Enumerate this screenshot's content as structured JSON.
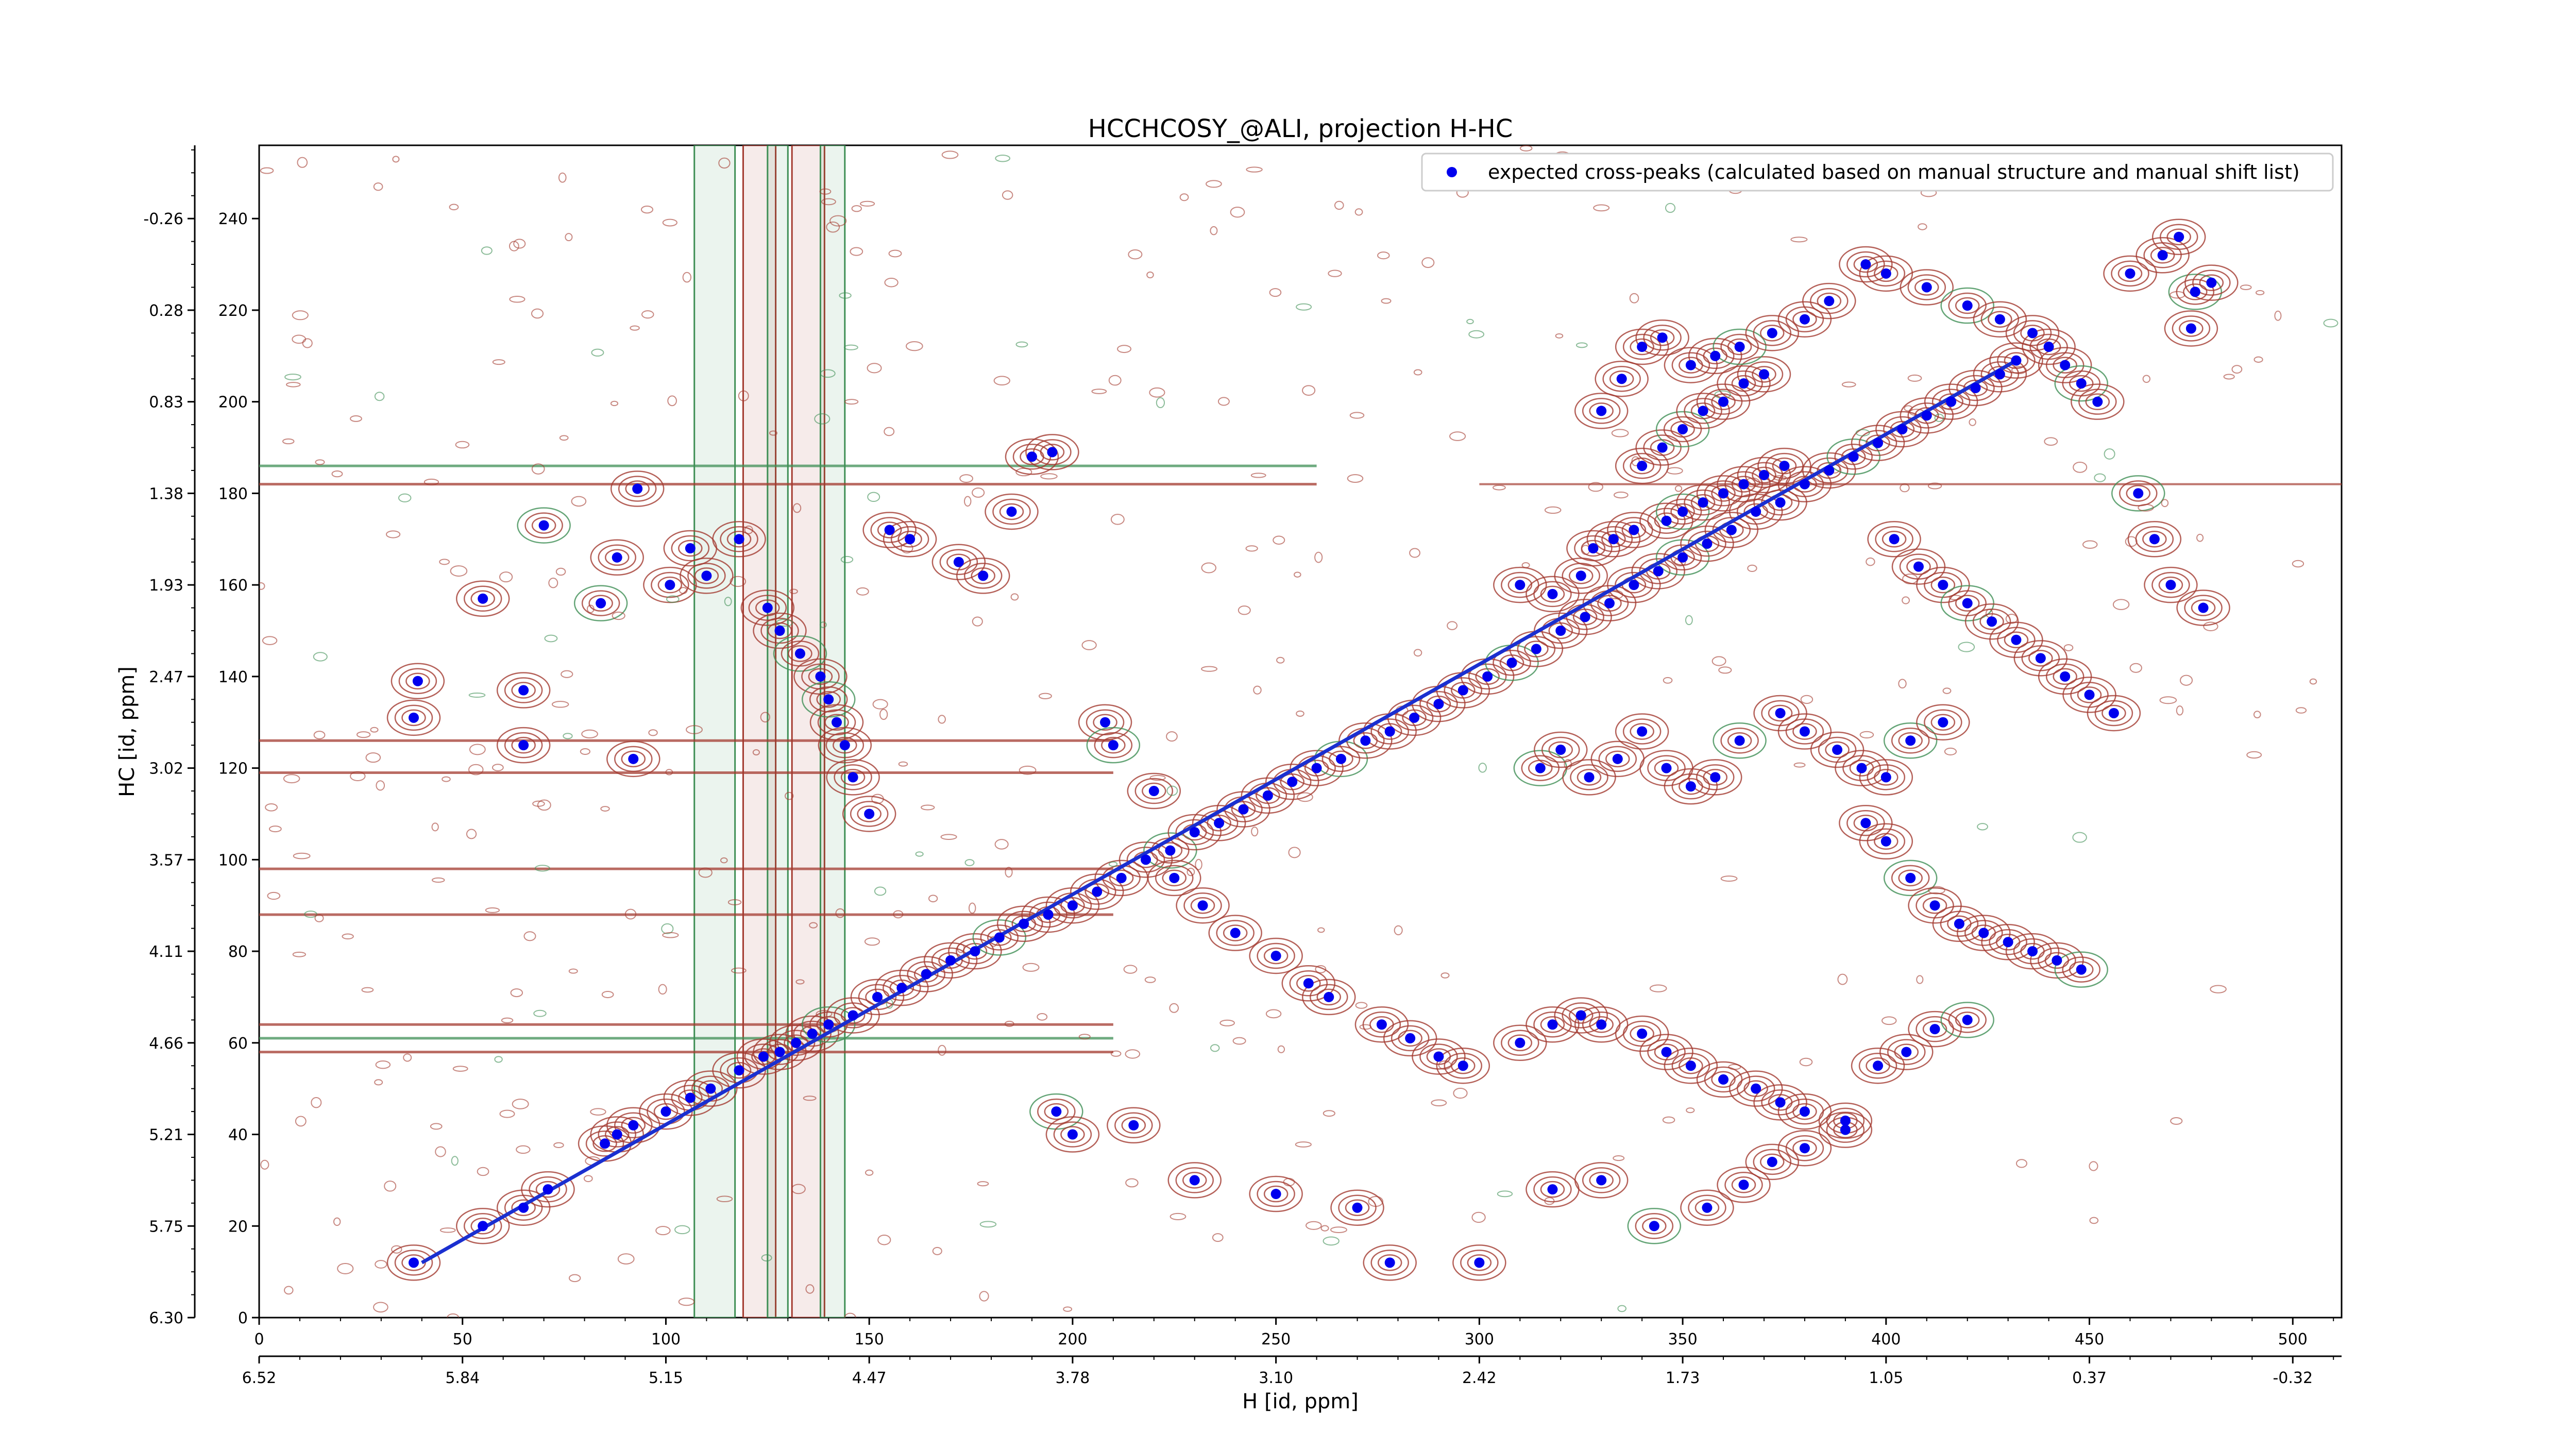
{
  "chart_data": {
    "type": "scatter",
    "title": "HCCHCOSY_@ALI, projection H-HC",
    "xlabel": "H [id, ppm]",
    "ylabel": "HC [id, ppm]",
    "x_index_range": [
      0,
      512
    ],
    "y_index_range": [
      0,
      256
    ],
    "x_index_ticks": [
      "0",
      "50",
      "100",
      "150",
      "200",
      "250",
      "300",
      "350",
      "400",
      "450",
      "500"
    ],
    "x_index_tick_values": [
      0,
      50,
      100,
      150,
      200,
      250,
      300,
      350,
      400,
      450,
      500
    ],
    "x_ppm_ticks": [
      "6.52",
      "5.84",
      "5.15",
      "4.47",
      "3.78",
      "3.10",
      "2.42",
      "1.73",
      "1.05",
      "0.37",
      "-0.32"
    ],
    "x_ppm_tick_positions": [
      0,
      50,
      100,
      150,
      200,
      250,
      300,
      350,
      400,
      450,
      500
    ],
    "y_index_ticks": [
      "0",
      "20",
      "40",
      "60",
      "80",
      "100",
      "120",
      "140",
      "160",
      "180",
      "200",
      "220",
      "240"
    ],
    "y_index_tick_values": [
      0,
      20,
      40,
      60,
      80,
      100,
      120,
      140,
      160,
      180,
      200,
      220,
      240
    ],
    "y_ppm_ticks": [
      "6.30",
      "5.75",
      "5.21",
      "4.66",
      "4.11",
      "3.57",
      "3.02",
      "2.47",
      "1.93",
      "1.38",
      "0.83",
      "0.28",
      "-0.26"
    ],
    "y_ppm_tick_positions": [
      0,
      20,
      40,
      60,
      80,
      100,
      120,
      140,
      160,
      180,
      200,
      220,
      240
    ],
    "legend": {
      "placement": "top-right",
      "label": "expected cross-peaks (calculated based on manual structure and manual shift list)"
    },
    "colors": {
      "positive_contour": "#a33a2f",
      "negative_contour": "#3f8f55",
      "peaks": "#0000ee"
    },
    "diagonal": {
      "x": [
        40,
        432
      ],
      "y": [
        12,
        209
      ]
    },
    "series": [
      {
        "name": "expected cross-peaks (calculated based on manual structure and manual shift list)",
        "points": [
          [
            38,
            12
          ],
          [
            55,
            20
          ],
          [
            65,
            24
          ],
          [
            71,
            28
          ],
          [
            85,
            38
          ],
          [
            88,
            40
          ],
          [
            92,
            42
          ],
          [
            100,
            45
          ],
          [
            106,
            48
          ],
          [
            111,
            50
          ],
          [
            118,
            54
          ],
          [
            124,
            57
          ],
          [
            128,
            58
          ],
          [
            132,
            60
          ],
          [
            136,
            62
          ],
          [
            140,
            64
          ],
          [
            146,
            66
          ],
          [
            152,
            70
          ],
          [
            158,
            72
          ],
          [
            164,
            75
          ],
          [
            170,
            78
          ],
          [
            176,
            80
          ],
          [
            182,
            83
          ],
          [
            188,
            86
          ],
          [
            194,
            88
          ],
          [
            200,
            90
          ],
          [
            206,
            93
          ],
          [
            212,
            96
          ],
          [
            218,
            100
          ],
          [
            224,
            102
          ],
          [
            230,
            106
          ],
          [
            236,
            108
          ],
          [
            242,
            111
          ],
          [
            248,
            114
          ],
          [
            254,
            117
          ],
          [
            260,
            120
          ],
          [
            266,
            122
          ],
          [
            272,
            126
          ],
          [
            278,
            128
          ],
          [
            284,
            131
          ],
          [
            290,
            134
          ],
          [
            296,
            137
          ],
          [
            302,
            140
          ],
          [
            308,
            143
          ],
          [
            314,
            146
          ],
          [
            320,
            150
          ],
          [
            326,
            153
          ],
          [
            332,
            156
          ],
          [
            338,
            160
          ],
          [
            344,
            163
          ],
          [
            350,
            166
          ],
          [
            356,
            169
          ],
          [
            362,
            172
          ],
          [
            368,
            176
          ],
          [
            374,
            178
          ],
          [
            380,
            182
          ],
          [
            386,
            185
          ],
          [
            392,
            188
          ],
          [
            398,
            191
          ],
          [
            404,
            194
          ],
          [
            410,
            197
          ],
          [
            416,
            200
          ],
          [
            422,
            203
          ],
          [
            428,
            206
          ],
          [
            432,
            209
          ],
          [
            39,
            139
          ],
          [
            38,
            131
          ],
          [
            65,
            137
          ],
          [
            65,
            125
          ],
          [
            92,
            122
          ],
          [
            93,
            181
          ],
          [
            88,
            166
          ],
          [
            70,
            173
          ],
          [
            55,
            157
          ],
          [
            84,
            156
          ],
          [
            101,
            160
          ],
          [
            110,
            162
          ],
          [
            106,
            168
          ],
          [
            118,
            170
          ],
          [
            125,
            155
          ],
          [
            128,
            150
          ],
          [
            133,
            145
          ],
          [
            138,
            140
          ],
          [
            140,
            135
          ],
          [
            142,
            130
          ],
          [
            144,
            125
          ],
          [
            146,
            118
          ],
          [
            150,
            110
          ],
          [
            155,
            172
          ],
          [
            160,
            170
          ],
          [
            172,
            165
          ],
          [
            178,
            162
          ],
          [
            185,
            176
          ],
          [
            190,
            188
          ],
          [
            195,
            189
          ],
          [
            208,
            130
          ],
          [
            210,
            125
          ],
          [
            220,
            115
          ],
          [
            225,
            96
          ],
          [
            232,
            90
          ],
          [
            240,
            84
          ],
          [
            250,
            79
          ],
          [
            258,
            73
          ],
          [
            263,
            70
          ],
          [
            276,
            64
          ],
          [
            283,
            61
          ],
          [
            290,
            57
          ],
          [
            296,
            55
          ],
          [
            310,
            60
          ],
          [
            318,
            64
          ],
          [
            325,
            66
          ],
          [
            330,
            64
          ],
          [
            340,
            62
          ],
          [
            346,
            58
          ],
          [
            352,
            55
          ],
          [
            360,
            52
          ],
          [
            368,
            50
          ],
          [
            374,
            47
          ],
          [
            380,
            45
          ],
          [
            390,
            43
          ],
          [
            398,
            55
          ],
          [
            405,
            58
          ],
          [
            412,
            63
          ],
          [
            420,
            65
          ],
          [
            196,
            45
          ],
          [
            200,
            40
          ],
          [
            215,
            42
          ],
          [
            230,
            30
          ],
          [
            250,
            27
          ],
          [
            270,
            24
          ],
          [
            278,
            12
          ],
          [
            300,
            12
          ],
          [
            318,
            28
          ],
          [
            330,
            30
          ],
          [
            343,
            20
          ],
          [
            356,
            24
          ],
          [
            365,
            29
          ],
          [
            372,
            34
          ],
          [
            380,
            37
          ],
          [
            390,
            41
          ],
          [
            310,
            160
          ],
          [
            318,
            158
          ],
          [
            325,
            162
          ],
          [
            328,
            168
          ],
          [
            333,
            170
          ],
          [
            338,
            172
          ],
          [
            346,
            174
          ],
          [
            350,
            176
          ],
          [
            355,
            178
          ],
          [
            360,
            180
          ],
          [
            365,
            182
          ],
          [
            370,
            184
          ],
          [
            375,
            186
          ],
          [
            340,
            186
          ],
          [
            345,
            190
          ],
          [
            350,
            194
          ],
          [
            355,
            198
          ],
          [
            360,
            200
          ],
          [
            365,
            204
          ],
          [
            370,
            206
          ],
          [
            330,
            198
          ],
          [
            335,
            205
          ],
          [
            340,
            212
          ],
          [
            345,
            214
          ],
          [
            352,
            208
          ],
          [
            358,
            210
          ],
          [
            364,
            212
          ],
          [
            372,
            215
          ],
          [
            380,
            218
          ],
          [
            386,
            222
          ],
          [
            395,
            230
          ],
          [
            400,
            228
          ],
          [
            410,
            225
          ],
          [
            420,
            221
          ],
          [
            428,
            218
          ],
          [
            436,
            215
          ],
          [
            440,
            212
          ],
          [
            444,
            208
          ],
          [
            448,
            204
          ],
          [
            452,
            200
          ],
          [
            460,
            228
          ],
          [
            468,
            232
          ],
          [
            472,
            236
          ],
          [
            476,
            224
          ],
          [
            480,
            226
          ],
          [
            475,
            216
          ],
          [
            315,
            120
          ],
          [
            320,
            124
          ],
          [
            327,
            118
          ],
          [
            334,
            122
          ],
          [
            340,
            128
          ],
          [
            346,
            120
          ],
          [
            352,
            116
          ],
          [
            358,
            118
          ],
          [
            364,
            126
          ],
          [
            374,
            132
          ],
          [
            380,
            128
          ],
          [
            388,
            124
          ],
          [
            394,
            120
          ],
          [
            400,
            118
          ],
          [
            406,
            126
          ],
          [
            414,
            130
          ],
          [
            395,
            108
          ],
          [
            400,
            104
          ],
          [
            406,
            96
          ],
          [
            412,
            90
          ],
          [
            418,
            86
          ],
          [
            424,
            84
          ],
          [
            430,
            82
          ],
          [
            436,
            80
          ],
          [
            442,
            78
          ],
          [
            448,
            76
          ],
          [
            402,
            170
          ],
          [
            408,
            164
          ],
          [
            414,
            160
          ],
          [
            420,
            156
          ],
          [
            426,
            152
          ],
          [
            432,
            148
          ],
          [
            438,
            144
          ],
          [
            444,
            140
          ],
          [
            450,
            136
          ],
          [
            456,
            132
          ],
          [
            462,
            180
          ],
          [
            466,
            170
          ],
          [
            470,
            160
          ],
          [
            478,
            155
          ]
        ]
      }
    ]
  }
}
